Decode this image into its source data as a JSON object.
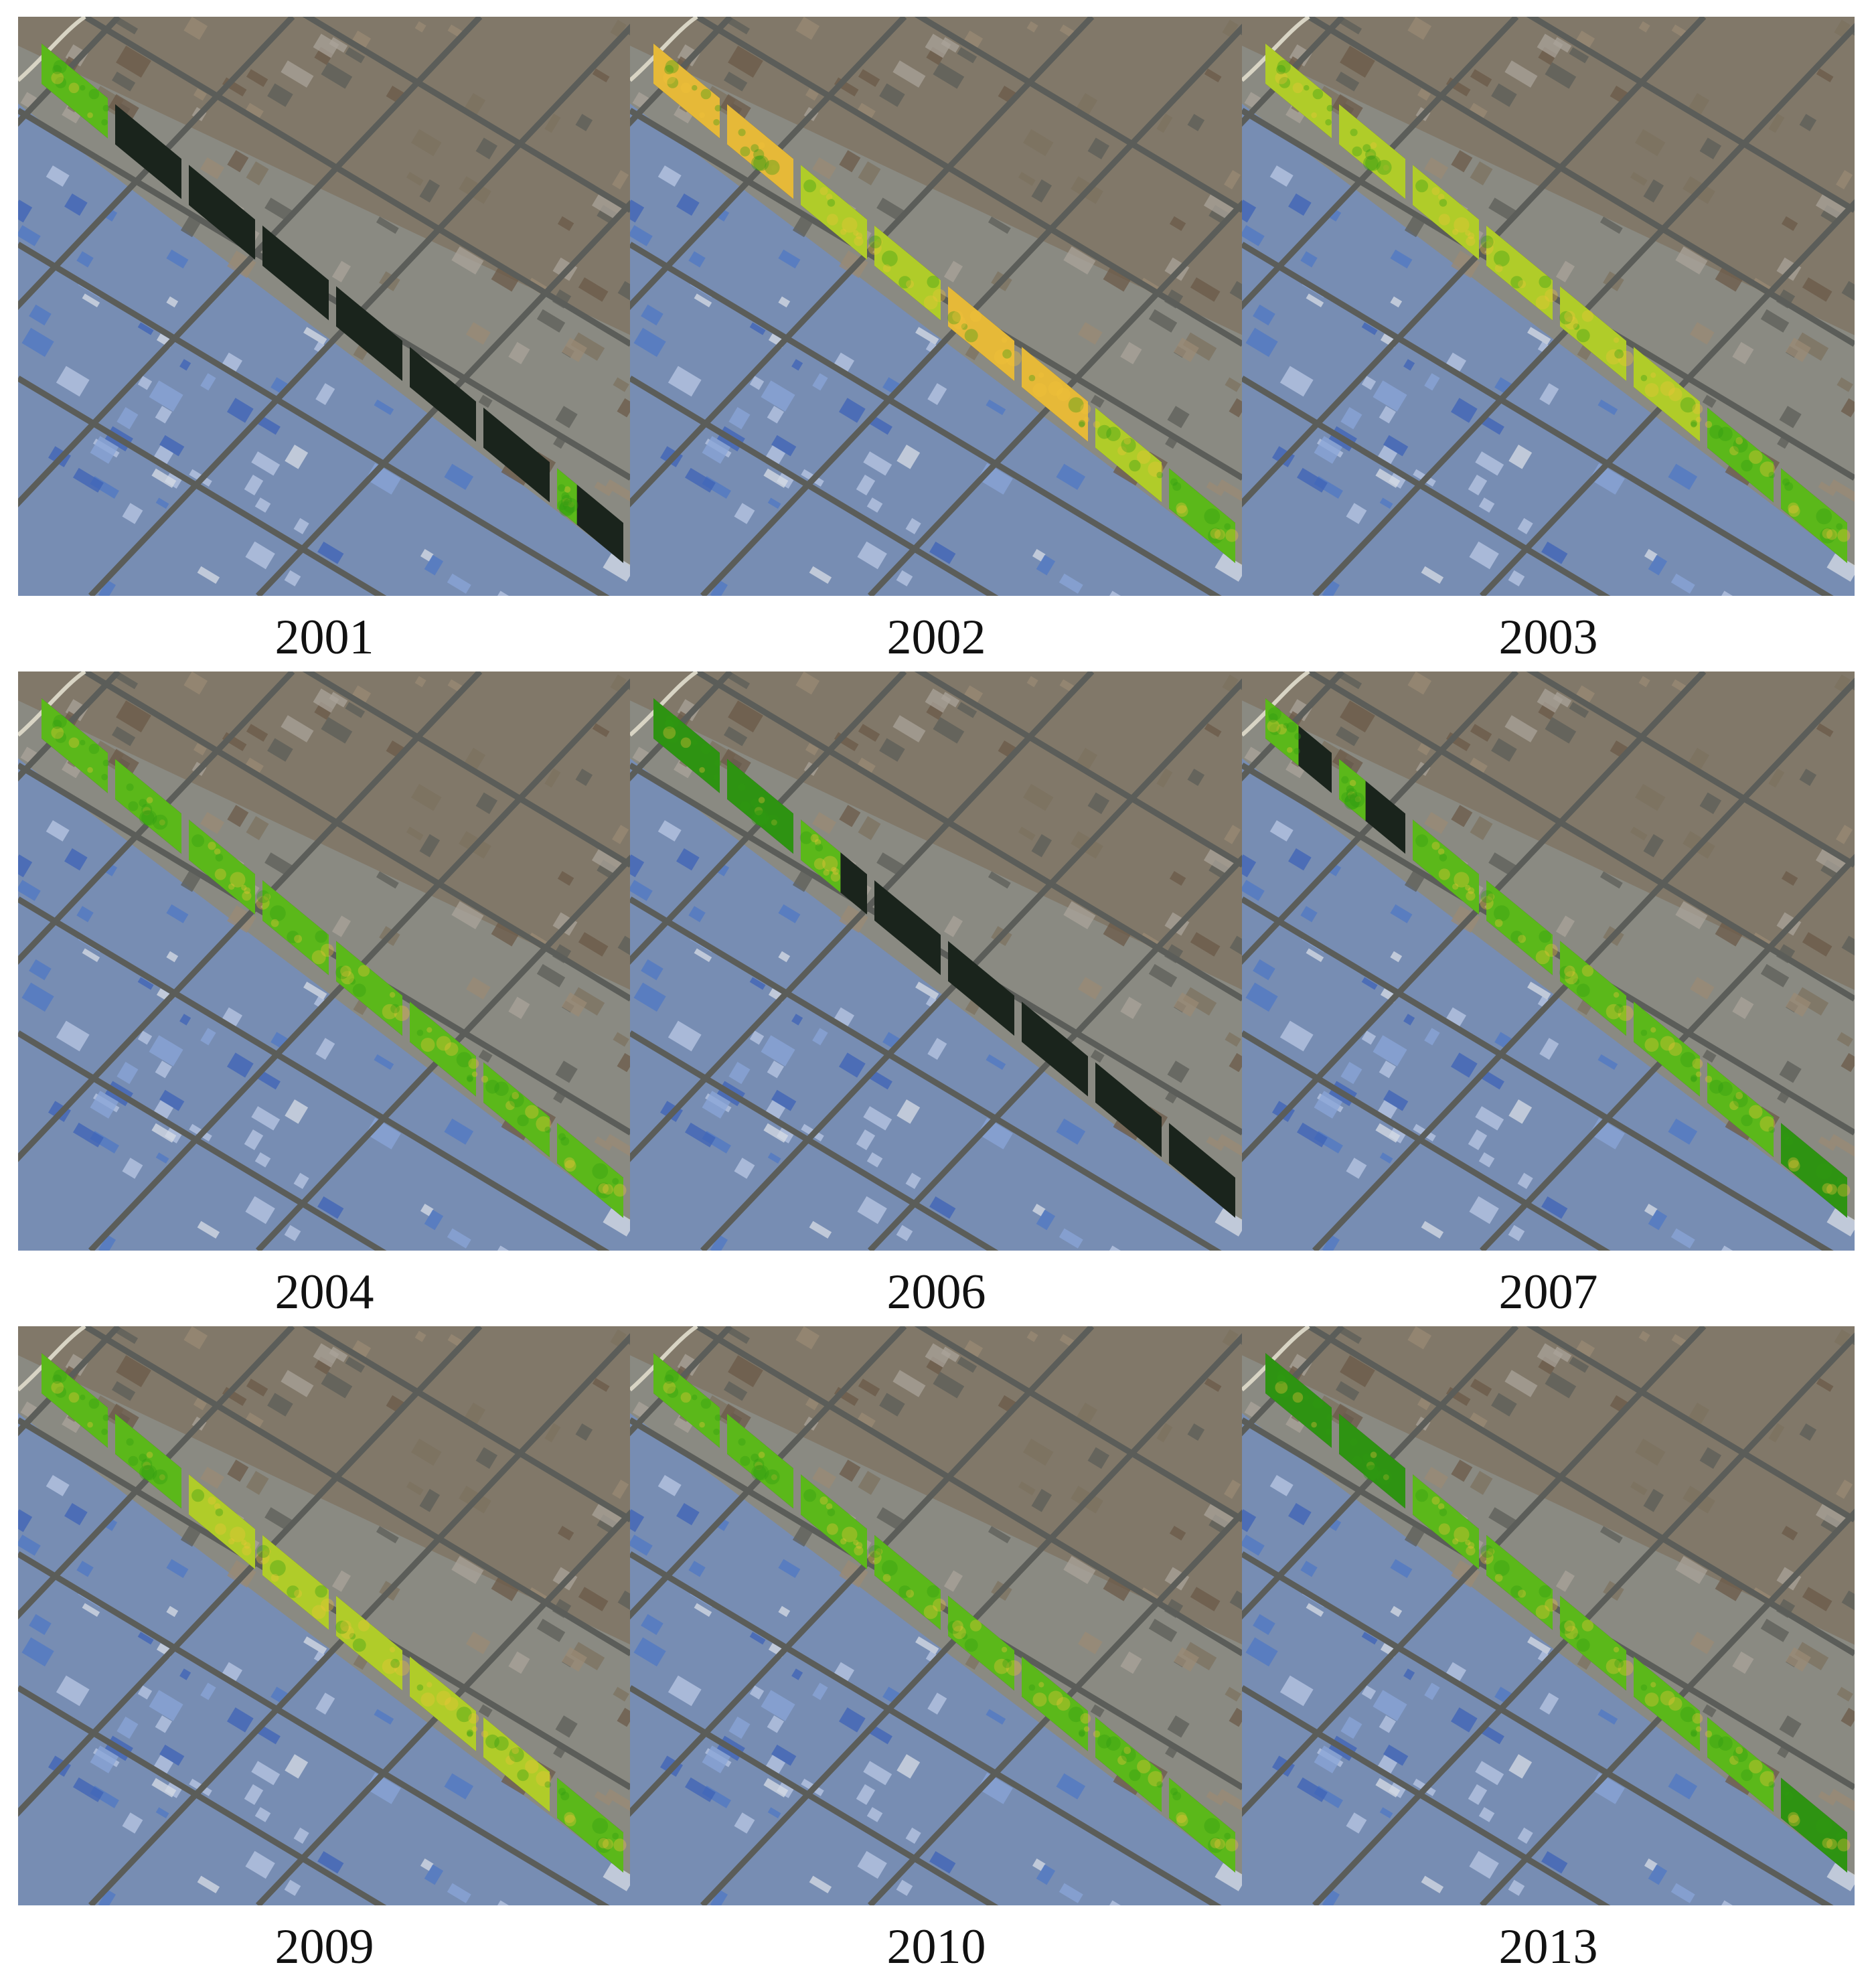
{
  "figure": {
    "panels": [
      {
        "year": "2001",
        "strip": {
          "present": [
            1,
            0,
            0,
            0,
            0,
            0,
            0,
            0.3
          ],
          "tone": [
            "green",
            "dark",
            "dark",
            "dark",
            "dark",
            "dark",
            "dark",
            "green"
          ]
        }
      },
      {
        "year": "2002",
        "strip": {
          "present": [
            1,
            1,
            1,
            1,
            1,
            1,
            1,
            1
          ],
          "tone": [
            "yellow",
            "yellow",
            "yellowgreen",
            "yellowgreen",
            "yellow",
            "yellow",
            "yellowgreen",
            "green"
          ]
        }
      },
      {
        "year": "2003",
        "strip": {
          "present": [
            1,
            1,
            1,
            1,
            1,
            1,
            1,
            1
          ],
          "tone": [
            "yellowgreen",
            "yellowgreen",
            "yellowgreen",
            "yellowgreen",
            "yellowgreen",
            "yellowgreen",
            "green",
            "green"
          ]
        }
      },
      {
        "year": "2004",
        "strip": {
          "present": [
            1,
            1,
            1,
            1,
            1,
            1,
            1,
            1
          ],
          "tone": [
            "green",
            "green",
            "green",
            "green",
            "green",
            "green",
            "green",
            "green"
          ]
        }
      },
      {
        "year": "2006",
        "strip": {
          "present": [
            1,
            1,
            0.6,
            0,
            0,
            0,
            0,
            0
          ],
          "tone": [
            "darkgreen",
            "darkgreen",
            "green",
            "dark",
            "dark",
            "dark",
            "dark",
            "dark"
          ]
        }
      },
      {
        "year": "2007",
        "strip": {
          "present": [
            0.5,
            0.4,
            1,
            1,
            1,
            1,
            1,
            1
          ],
          "tone": [
            "green",
            "green",
            "green",
            "green",
            "green",
            "green",
            "green",
            "darkgreen"
          ]
        }
      },
      {
        "year": "2009",
        "strip": {
          "present": [
            1,
            1,
            1,
            1,
            1,
            1,
            1,
            1
          ],
          "tone": [
            "green",
            "green",
            "yellowgreen",
            "yellowgreen",
            "yellowgreen",
            "yellowgreen",
            "yellowgreen",
            "green"
          ]
        }
      },
      {
        "year": "2010",
        "strip": {
          "present": [
            1,
            1,
            1,
            1,
            1,
            1,
            1,
            1
          ],
          "tone": [
            "green",
            "green",
            "green",
            "green",
            "green",
            "green",
            "green",
            "green"
          ]
        }
      },
      {
        "year": "2013",
        "strip": {
          "present": [
            1,
            1,
            1,
            1,
            1,
            1,
            1,
            1
          ],
          "tone": [
            "darkgreen",
            "darkgreen",
            "green",
            "green",
            "green",
            "green",
            "green",
            "darkgreen"
          ]
        }
      }
    ]
  },
  "colors": {
    "yellow": "#f1c23a",
    "yellowgreen": "#b8d62a",
    "green": "#5fc11a",
    "darkgreen": "#2f9a12",
    "dark": "#1a241c",
    "urban_brown": "#7a6a55",
    "urban_grey": "#8a8a82",
    "industrial_blue": "#6f8fc8",
    "road": "#5b5d59"
  }
}
